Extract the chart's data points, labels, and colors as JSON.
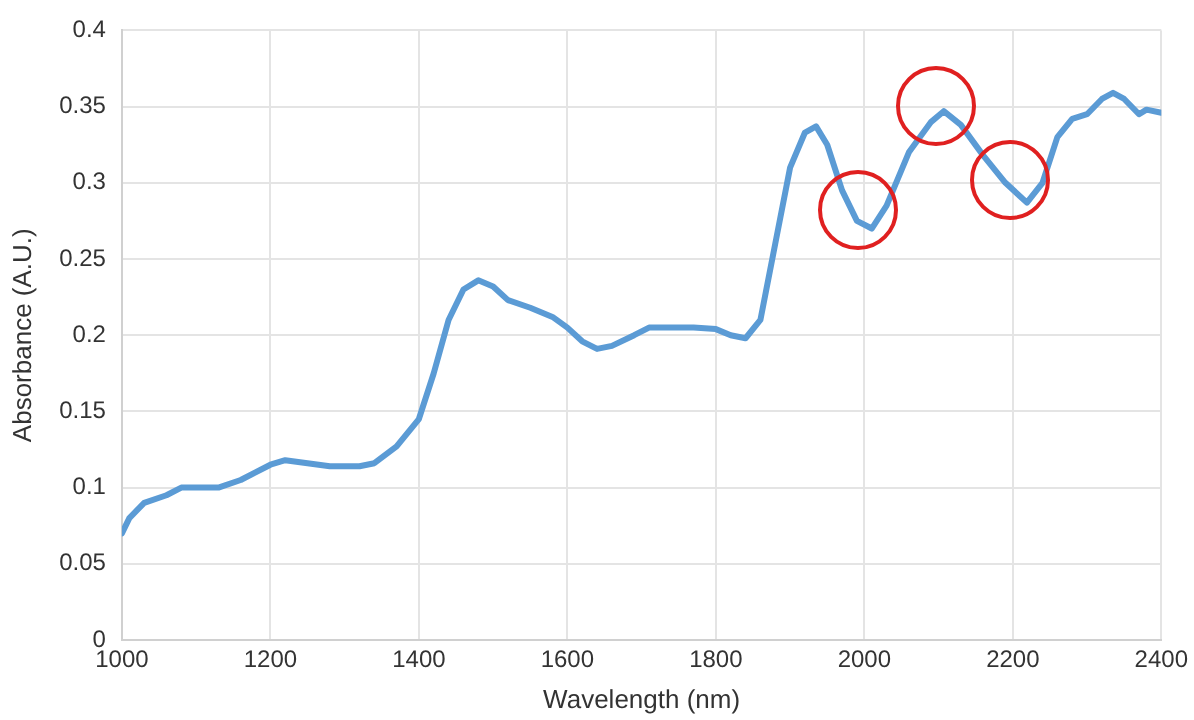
{
  "chart_data": {
    "type": "line",
    "xlabel": "Wavelength (nm)",
    "ylabel": "Absorbance (A.U.)",
    "x": [
      1000,
      1010,
      1030,
      1060,
      1080,
      1100,
      1130,
      1160,
      1200,
      1220,
      1250,
      1280,
      1320,
      1340,
      1370,
      1400,
      1420,
      1440,
      1460,
      1480,
      1500,
      1520,
      1550,
      1580,
      1600,
      1620,
      1640,
      1660,
      1690,
      1710,
      1740,
      1770,
      1800,
      1820,
      1840,
      1860,
      1880,
      1900,
      1920,
      1935,
      1950,
      1970,
      1990,
      2010,
      2030,
      2060,
      2090,
      2107,
      2130,
      2160,
      2190,
      2219,
      2240,
      2260,
      2280,
      2300,
      2320,
      2335,
      2350,
      2370,
      2380,
      2400
    ],
    "series": [
      {
        "color": "#5b9bd5",
        "values": [
          0.07,
          0.08,
          0.09,
          0.095,
          0.1,
          0.1,
          0.1,
          0.105,
          0.115,
          0.118,
          0.116,
          0.114,
          0.114,
          0.116,
          0.127,
          0.145,
          0.175,
          0.21,
          0.23,
          0.236,
          0.232,
          0.223,
          0.218,
          0.212,
          0.205,
          0.196,
          0.191,
          0.193,
          0.2,
          0.205,
          0.205,
          0.205,
          0.204,
          0.2,
          0.198,
          0.21,
          0.26,
          0.31,
          0.333,
          0.337,
          0.325,
          0.295,
          0.275,
          0.27,
          0.285,
          0.32,
          0.34,
          0.347,
          0.338,
          0.318,
          0.3,
          0.287,
          0.3,
          0.33,
          0.342,
          0.345,
          0.355,
          0.359,
          0.355,
          0.345,
          0.348,
          0.346
        ]
      }
    ],
    "xlim": [
      1000,
      2400
    ],
    "xticks": [
      1000,
      1200,
      1400,
      1600,
      1800,
      2000,
      2200,
      2400
    ],
    "ylim": [
      0,
      0.4
    ],
    "yticks": [
      0,
      0.05,
      0.1,
      0.15,
      0.2,
      0.25,
      0.3,
      0.35,
      0.4
    ],
    "grid": true,
    "legend": false,
    "marker": "none",
    "line_style": "solid"
  }
}
